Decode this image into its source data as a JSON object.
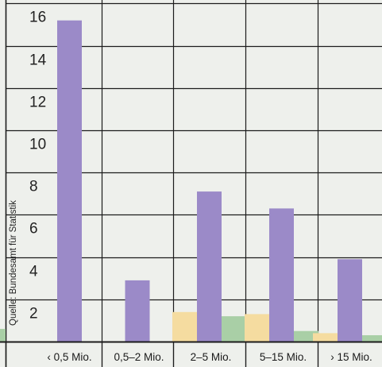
{
  "chart_data": {
    "type": "bar",
    "title": "",
    "xlabel": "",
    "ylabel": "",
    "source_note": "Quelle: Bundesamt für Statistik",
    "categories": [
      "‹ 0,5 Mio.",
      "0,5–2 Mio.",
      "2–5 Mio.",
      "5–15 Mio.",
      "› 15 Mio."
    ],
    "ylim": [
      0,
      16
    ],
    "yticks": [
      2,
      4,
      6,
      8,
      10,
      12,
      14,
      16
    ],
    "grid": true,
    "series": [
      {
        "color": "#f5dca0",
        "values": [
          0,
          0,
          1.4,
          1.3,
          0.4
        ]
      },
      {
        "color": "#9b8ac8",
        "values": [
          15.2,
          2.9,
          7.1,
          6.3,
          3.9
        ]
      },
      {
        "color": "#a9cfa6",
        "values": [
          0,
          0,
          1.2,
          0.5,
          0.3
        ]
      }
    ]
  }
}
